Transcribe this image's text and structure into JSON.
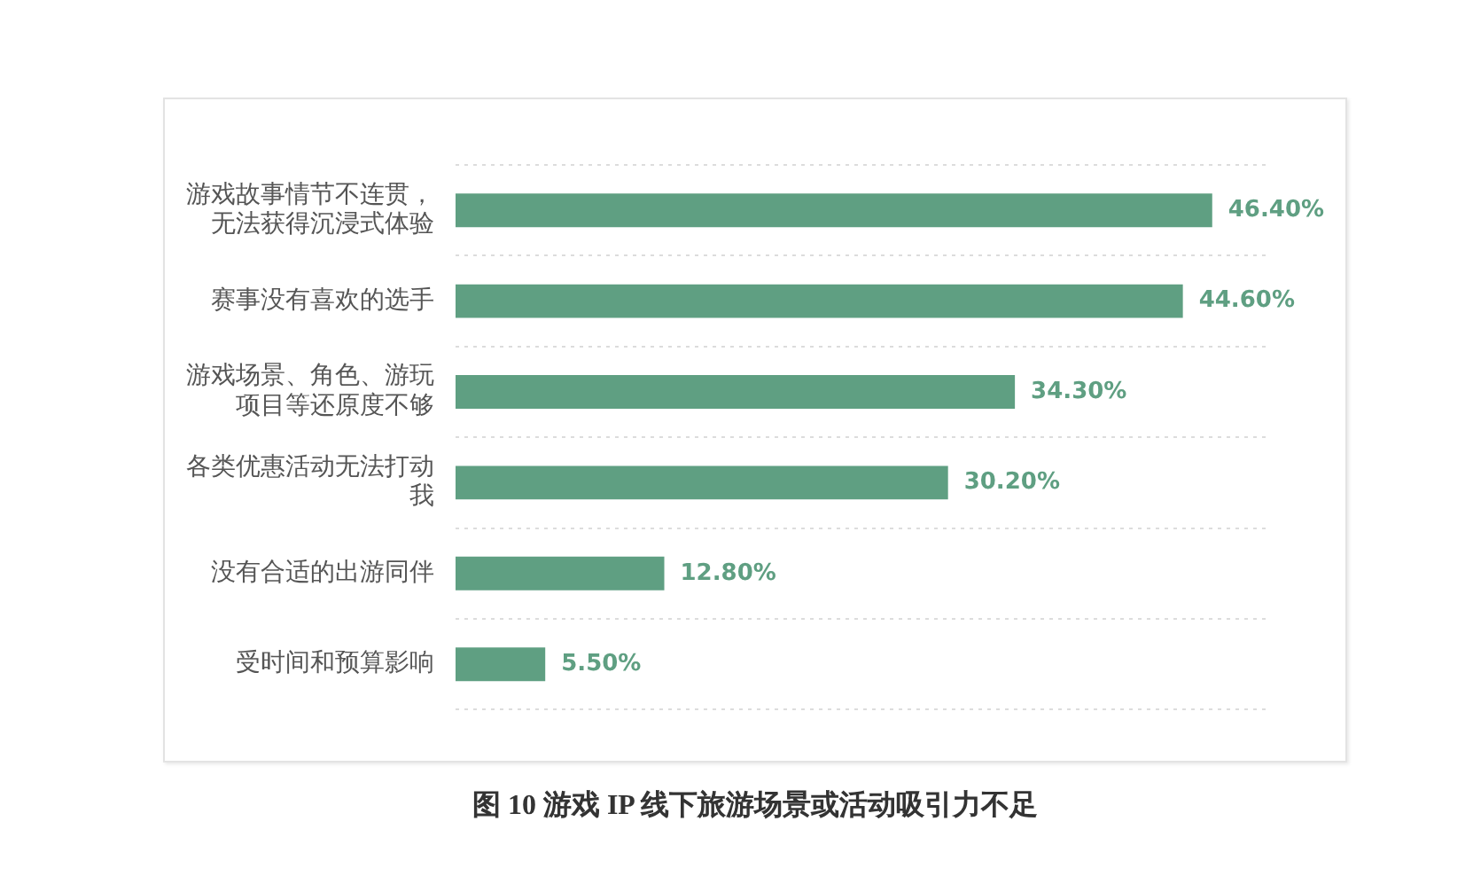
{
  "chart_data": {
    "type": "bar",
    "orientation": "horizontal",
    "title": "图 10 游戏 IP 线下旅游场景或活动吸引力不足",
    "categories": [
      "游戏故事情节不连贯，无法获得沉浸式体验",
      "赛事没有喜欢的选手",
      "游戏场景、角色、游玩项目等还原度不够",
      "各类优惠活动无法打动我",
      "没有合适的出游同伴",
      "受时间和预算影响"
    ],
    "values": [
      46.4,
      44.6,
      34.3,
      30.2,
      12.8,
      5.5
    ],
    "color": "#5f9f82",
    "value_labels": [
      "46.40%",
      "44.60%",
      "34.30%",
      "30.20%",
      "12.80%",
      "5.50%"
    ],
    "grid": "y",
    "tick_labels": "y"
  }
}
